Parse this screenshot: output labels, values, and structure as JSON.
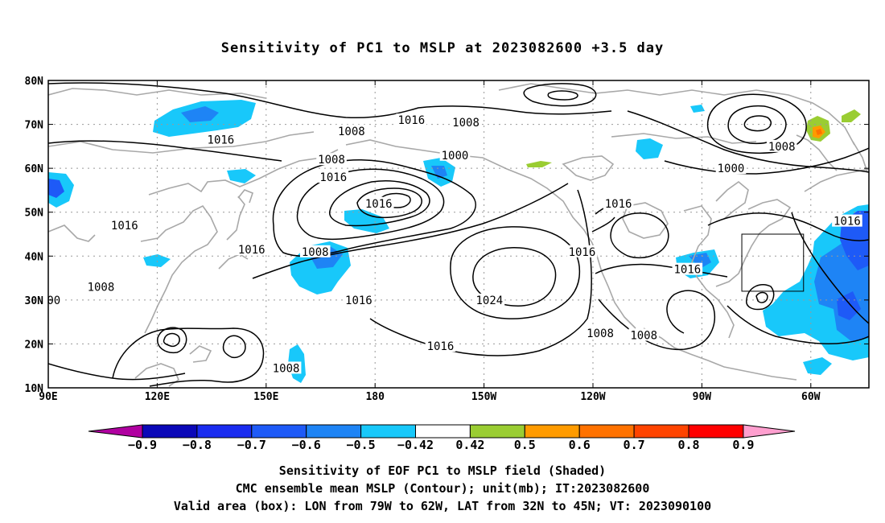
{
  "title": "Sensitivity of PC1 to MSLP at 2023082600 +3.5 day",
  "map": {
    "lat_labels": [
      "80N",
      "70N",
      "60N",
      "50N",
      "40N",
      "30N",
      "20N",
      "10N"
    ],
    "lon_labels": [
      "90E",
      "120E",
      "150E",
      "180",
      "150W",
      "120W",
      "90W",
      "60W"
    ],
    "lat_range": [
      10,
      80
    ],
    "lon_range": [
      90,
      316
    ],
    "grid": "dotted",
    "contour_labels": [
      {
        "text": "1008",
        "lon": 173.5,
        "lat": 68.5
      },
      {
        "text": "1016",
        "lon": 190.0,
        "lat": 71.0
      },
      {
        "text": "1008",
        "lon": 205.0,
        "lat": 70.5
      },
      {
        "text": "1000",
        "lon": 202.0,
        "lat": 63.0
      },
      {
        "text": "1008",
        "lon": 292.0,
        "lat": 65.0
      },
      {
        "text": "1000",
        "lon": 278.0,
        "lat": 60.0
      },
      {
        "text": "1016",
        "lon": 137.5,
        "lat": 66.5
      },
      {
        "text": "1008",
        "lon": 168.0,
        "lat": 62.0
      },
      {
        "text": "1016",
        "lon": 168.5,
        "lat": 58.0
      },
      {
        "text": "1016",
        "lon": 181.0,
        "lat": 52.0
      },
      {
        "text": "1016",
        "lon": 247.0,
        "lat": 52.0
      },
      {
        "text": "1016",
        "lon": 310.0,
        "lat": 48.0
      },
      {
        "text": "1016",
        "lon": 111.0,
        "lat": 47.0
      },
      {
        "text": "1016",
        "lon": 146.0,
        "lat": 41.5
      },
      {
        "text": "1016",
        "lon": 237.0,
        "lat": 41.0
      },
      {
        "text": "1008",
        "lon": 163.5,
        "lat": 41.0
      },
      {
        "text": "1016",
        "lon": 266.0,
        "lat": 37.0
      },
      {
        "text": "1008",
        "lon": 104.5,
        "lat": 33.0
      },
      {
        "text": "00",
        "lon": 91.5,
        "lat": 30.0
      },
      {
        "text": "1016",
        "lon": 175.5,
        "lat": 30.0
      },
      {
        "text": "1024",
        "lon": 211.5,
        "lat": 30.0
      },
      {
        "text": "1008",
        "lon": 242.0,
        "lat": 22.5
      },
      {
        "text": "1008",
        "lon": 254.0,
        "lat": 22.0
      },
      {
        "text": "1016",
        "lon": 198.0,
        "lat": 19.5
      },
      {
        "text": "1008",
        "lon": 155.5,
        "lat": 14.5
      }
    ],
    "valid_box": {
      "lon_west": 79,
      "lon_east": 62,
      "lat_south": 32,
      "lat_north": 45
    }
  },
  "colorbar": {
    "labels": [
      "−0.9",
      "−0.8",
      "−0.7",
      "−0.6",
      "−0.5",
      "−0.42",
      "0.42",
      "0.5",
      "0.6",
      "0.7",
      "0.8",
      "0.9"
    ],
    "colors": [
      "#0b08b8",
      "#1a2cf0",
      "#1e5af7",
      "#1e84f5",
      "#18c8fa",
      "#ffffff",
      "#9acd32",
      "#ff9b00",
      "#ff7200",
      "#ff4400",
      "#ff0000"
    ],
    "low_end_color": "#b000a0",
    "high_end_color": "#ff9fcf"
  },
  "captions": {
    "line1": "Sensitivity of EOF PC1 to MSLP field (Shaded)",
    "line2": "CMC ensemble mean MSLP (Contour); unit(mb); IT:2023082600",
    "line3": "Valid area (box): LON from 79W to 62W, LAT from 32N to 45N; VT: 2023090100"
  }
}
